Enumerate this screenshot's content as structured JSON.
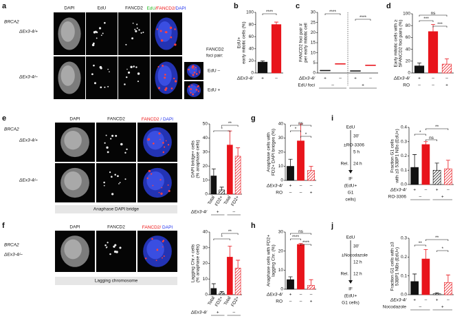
{
  "panel_labels": [
    "a",
    "b",
    "c",
    "d",
    "e",
    "f",
    "g",
    "h",
    "i",
    "j"
  ],
  "figure_a": {
    "row_labels": [
      "BRCA2",
      "ΔEx3-4/+",
      "ΔEx3-4/–"
    ],
    "columns": [
      "DAPI",
      "EdU",
      "FANCD2"
    ],
    "merge": [
      {
        "text": "EdU",
        "color": "#22bb22"
      },
      {
        "text": "/FANCD2/",
        "color": "#ee1111"
      },
      {
        "text": "DAPI",
        "color": "#2233ee"
      }
    ],
    "inset_title": [
      {
        "text": "FANCD2",
        "color": "#ee1111"
      },
      {
        "text": "foci pair:",
        "color": "#111111"
      }
    ],
    "inset_labels": [
      "EdU –",
      "EdU +"
    ]
  },
  "figure_e": {
    "row_labels": [
      "BRCA2",
      "ΔEx3-4/+",
      "ΔEx3-4/–"
    ],
    "columns": [
      "DAPI",
      "FANCD2"
    ],
    "merge": [
      {
        "text": "FANCD2 ",
        "color": "#ee1111"
      },
      {
        "text": "/ DAPI",
        "color": "#2233ee"
      }
    ],
    "caption": "Anaphase DAPI bridge"
  },
  "figure_f": {
    "row_labels": [
      "BRCA2",
      "ΔEx3-4/–"
    ],
    "columns": [
      "DAPI",
      "FANCD2"
    ],
    "merge": [
      {
        "text": "FANCD2/ ",
        "color": "#ee1111"
      },
      {
        "text": "DAPI",
        "color": "#2233ee"
      }
    ],
    "caption": "Lagging chromosome"
  },
  "protocol_i": [
    "EdU",
    "30′",
    "±RO-3306",
    "5 h",
    "Rel.",
    "24 h",
    "IF",
    "(EdU+",
    "G1",
    "cells)"
  ],
  "protocol_j": [
    "EdU",
    "30′",
    "±Nocodazole",
    "12 h",
    "Rel.",
    "12 h",
    "IF",
    "(EdU+",
    "G1 cells)"
  ],
  "chart_data": [
    {
      "type": "bar",
      "ylabel": [
        "EdU+",
        "early mitotic cells (%)"
      ],
      "values": [
        18,
        80
      ],
      "errors": [
        2,
        4
      ],
      "colors": [
        "#111111",
        "#e8141b"
      ],
      "hatched": [
        false,
        false
      ],
      "ylim": [
        0,
        100
      ],
      "yticks": [
        0,
        20,
        40,
        60,
        80,
        100
      ],
      "rows": [
        {
          "name": "ΔEx3-4/",
          "values": [
            "+",
            "–"
          ]
        }
      ],
      "comparisons": [
        {
          "label": "****",
          "from": 0,
          "to": 1
        }
      ]
    },
    {
      "type": "dot",
      "ylabel": [
        "FANCD2 foci pair #",
        "per early mitotic cell"
      ],
      "values": [
        1.2,
        4.5,
        1,
        3.8
      ],
      "colors": [
        "#111111",
        "#e8141b",
        "#111111",
        "#e8141b"
      ],
      "ylim": [
        0,
        30
      ],
      "yticks": [
        0,
        5,
        10,
        15,
        20,
        25,
        30
      ],
      "rows": [
        {
          "name": "ΔEx3-4/",
          "values": [
            "+",
            "–",
            "+",
            "–"
          ]
        },
        {
          "name": "EdU foci",
          "values": [
            "–",
            "+"
          ]
        }
      ],
      "comparisons": [
        {
          "label": "****",
          "from": 0,
          "to": 1
        },
        {
          "label": "****",
          "from": 2,
          "to": 3
        }
      ]
    },
    {
      "type": "bar",
      "ylabel": [
        "Early mitotic cells with ≥",
        "5FANCD2 foci pairs (%)"
      ],
      "values": [
        12,
        70,
        15
      ],
      "errors": [
        5,
        12,
        9
      ],
      "colors": [
        "#111111",
        "#e8141b",
        "#e8141b"
      ],
      "hatched": [
        false,
        false,
        true
      ],
      "ylim": [
        0,
        100
      ],
      "yticks": [
        0,
        20,
        40,
        60,
        80,
        100
      ],
      "rows": [
        {
          "name": "ΔEx3-4/",
          "values": [
            "+",
            "–",
            "–"
          ]
        },
        {
          "name": "RO",
          "values": [
            "–",
            "–",
            "+"
          ]
        }
      ],
      "comparisons": [
        {
          "label": "ns",
          "from": 0,
          "to": 2
        },
        {
          "label": "***",
          "from": 0,
          "to": 1
        },
        {
          "label": "***",
          "from": 1,
          "to": 2
        }
      ]
    },
    {
      "type": "bar",
      "ylabel": [
        "DAPI bridge+ cells",
        "(% anaphase cells)"
      ],
      "categories": [
        "Total",
        "FD2+",
        "Total",
        "FD2+"
      ],
      "values": [
        13,
        3,
        35,
        27
      ],
      "errors": [
        5,
        2,
        10,
        6
      ],
      "colors": [
        "#111111",
        "#111111",
        "#e8141b",
        "#e8141b"
      ],
      "hatched": [
        false,
        true,
        false,
        true
      ],
      "ylim": [
        0,
        50
      ],
      "yticks": [
        0,
        10,
        20,
        30,
        40,
        50
      ],
      "rows": [
        {
          "name": "ΔEx3-4/",
          "values": [
            "+",
            "–"
          ]
        }
      ],
      "comparisons": [
        {
          "label": "**",
          "from": 1,
          "to": 3
        },
        {
          "label": "*",
          "from": 0,
          "to": 2
        }
      ]
    },
    {
      "type": "bar",
      "ylabel": [
        "Lagging Chr.+ cells",
        "(% anaphase cells)"
      ],
      "categories": [
        "Total",
        "FD2+",
        "Total",
        "FD2+"
      ],
      "values": [
        4,
        1,
        24,
        17
      ],
      "errors": [
        3,
        1,
        7,
        5
      ],
      "colors": [
        "#111111",
        "#111111",
        "#e8141b",
        "#e8141b"
      ],
      "hatched": [
        false,
        true,
        false,
        true
      ],
      "ylim": [
        0,
        40
      ],
      "yticks": [
        0,
        10,
        20,
        30,
        40
      ],
      "rows": [
        {
          "name": "ΔEx3-4/",
          "values": [
            "+",
            "–"
          ]
        }
      ],
      "comparisons": [
        {
          "label": "**",
          "from": 1,
          "to": 3
        },
        {
          "label": "*",
          "from": 0,
          "to": 2
        }
      ]
    },
    {
      "type": "bar",
      "ylabel": [
        "Anaphase cells with",
        "FD2+ DAPI bridges (%)"
      ],
      "values": [
        10,
        28,
        7
      ],
      "errors": [
        5,
        12,
        3
      ],
      "colors": [
        "#111111",
        "#e8141b",
        "#e8141b"
      ],
      "hatched": [
        false,
        false,
        true
      ],
      "ylim": [
        0,
        40
      ],
      "yticks": [
        0,
        10,
        20,
        30,
        40
      ],
      "rows": [
        {
          "name": "ΔEx3-4/",
          "values": [
            "+",
            "–",
            "–"
          ]
        },
        {
          "name": "RO",
          "values": [
            "–",
            "–",
            "+"
          ]
        }
      ],
      "comparisons": [
        {
          "label": "ns",
          "from": 0,
          "to": 2
        },
        {
          "label": "*",
          "from": 0,
          "to": 1
        },
        {
          "label": "*",
          "from": 1,
          "to": 2
        }
      ]
    },
    {
      "type": "bar",
      "ylabel": [
        "Anaphase cells with FD2+",
        "lagging Chr. (%)"
      ],
      "values": [
        5,
        23.5,
        2
      ],
      "errors": [
        1.5,
        0.5,
        3
      ],
      "colors": [
        "#111111",
        "#e8141b",
        "#e8141b"
      ],
      "hatched": [
        false,
        false,
        true
      ],
      "ylim": [
        0,
        30
      ],
      "yticks": [
        0,
        10,
        20,
        30
      ],
      "rows": [
        {
          "name": "ΔEx3-4/",
          "values": [
            "+",
            "–",
            "–"
          ]
        },
        {
          "name": "RO",
          "values": [
            "–",
            "–",
            "+"
          ]
        }
      ],
      "comparisons": [
        {
          "label": "ns",
          "from": 0,
          "to": 2
        },
        {
          "label": "****",
          "from": 0,
          "to": 1
        },
        {
          "label": "****",
          "from": 1,
          "to": 2
        }
      ]
    },
    {
      "type": "bar",
      "ylabel": [
        "Fraction G1 cells",
        "with ≥3 53BP1 NBs (EdU+)"
      ],
      "values": [
        0.12,
        0.28,
        0.1,
        0.11
      ],
      "errors": [
        0.09,
        0.02,
        0.05,
        0.06
      ],
      "colors": [
        "#111111",
        "#e8141b",
        "#111111",
        "#e8141b"
      ],
      "hatched": [
        false,
        false,
        true,
        true
      ],
      "ylim": [
        0,
        0.4
      ],
      "yticks": [
        {
          "value": 0,
          "label": "0.0"
        },
        0.1,
        0.2,
        0.3,
        0.4
      ],
      "rows": [
        {
          "name": "ΔEx3-4/",
          "values": [
            "+",
            "–",
            "+",
            "–"
          ]
        },
        {
          "name": "RO-3306",
          "values": [
            "–",
            "+"
          ]
        }
      ],
      "comparisons": [
        {
          "label": "**",
          "from": 1,
          "to": 3
        },
        {
          "label": "*",
          "from": 0,
          "to": 1
        },
        {
          "label": "ns",
          "from": 1,
          "to": 2
        }
      ]
    },
    {
      "type": "bar",
      "ylabel": [
        "Fraction G1 cells with ≥3",
        "53BP1 NBs (EdU+)"
      ],
      "values": [
        0.07,
        0.19,
        0.005,
        0.065
      ],
      "errors": [
        0.04,
        0.05,
        0.005,
        0.04
      ],
      "colors": [
        "#111111",
        "#e8141b",
        "#111111",
        "#e8141b"
      ],
      "hatched": [
        false,
        false,
        true,
        true
      ],
      "ylim": [
        0,
        0.3
      ],
      "yticks": [
        {
          "value": 0,
          "label": "0.0"
        },
        0.1,
        0.2,
        0.3
      ],
      "rows": [
        {
          "name": "ΔEx3-4/",
          "values": [
            "+",
            "–",
            "+",
            "–"
          ]
        },
        {
          "name": "Nocodazole",
          "values": [
            "–",
            "+"
          ]
        }
      ],
      "comparisons": [
        {
          "label": "**",
          "from": 1,
          "to": 3
        },
        {
          "label": "**",
          "from": 0,
          "to": 1
        },
        {
          "label": "*",
          "from": 2,
          "to": 3
        }
      ]
    }
  ]
}
